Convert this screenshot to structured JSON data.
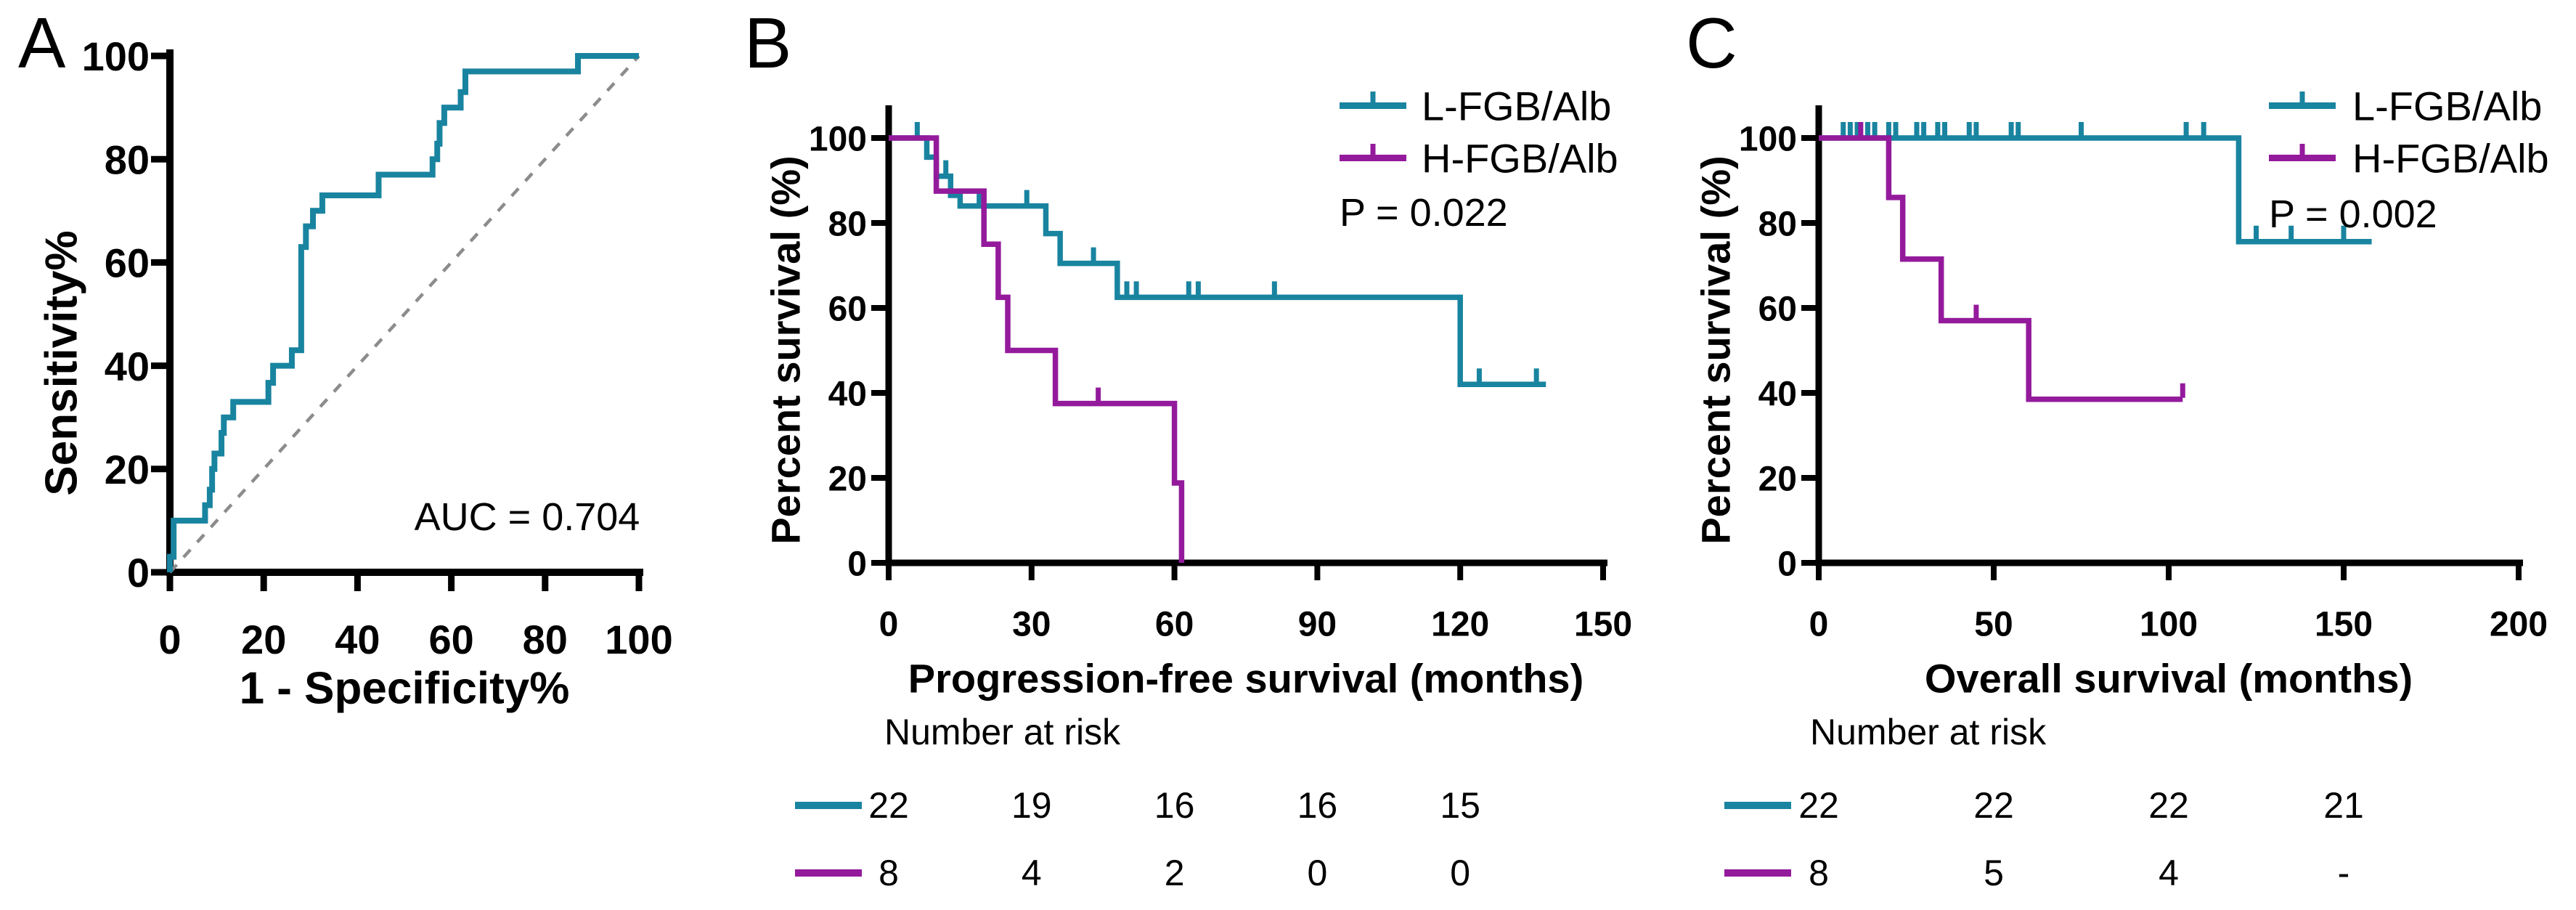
{
  "colors": {
    "teal": "#1984A0",
    "purple": "#941A9C",
    "diagonal": "#8C8C8C",
    "axis": "#000000",
    "background": "#FFFFFF"
  },
  "panels": {
    "a": {
      "letter": "A",
      "y_title": "Sensitivity%",
      "x_title": "1 - Specificity%",
      "annotation": "AUC = 0.704"
    },
    "b": {
      "letter": "B",
      "y_title": "Percent survival (%)",
      "x_title": "Progression-free survival (months)",
      "p_value": "P = 0.022",
      "number_at_risk_label": "Number at risk"
    },
    "c": {
      "letter": "C",
      "y_title": "Percent survival (%)",
      "x_title": "Overall survival (months)",
      "p_value": "P = 0.002",
      "number_at_risk_label": "Number at risk"
    }
  },
  "legend": {
    "series": [
      {
        "label": "L-FGB/Alb",
        "color_key": "teal"
      },
      {
        "label": "H-FGB/Alb",
        "color_key": "purple"
      }
    ]
  },
  "chart_data": [
    {
      "id": "roc",
      "type": "line",
      "title": "ROC curve",
      "xlabel": "1 - Specificity%",
      "ylabel": "Sensitivity%",
      "xlim": [
        0,
        100
      ],
      "ylim": [
        0,
        100
      ],
      "xticks": [
        0,
        20,
        40,
        60,
        80,
        100
      ],
      "yticks": [
        0,
        20,
        40,
        60,
        80,
        100
      ],
      "annotation": "AUC = 0.704",
      "auc": 0.704,
      "diagonal": true,
      "series": [
        {
          "name": "ROC",
          "color_key": "teal",
          "step": true,
          "points": [
            [
              0,
              0
            ],
            [
              0,
              3
            ],
            [
              0.8,
              10
            ],
            [
              7.5,
              13
            ],
            [
              8.5,
              16
            ],
            [
              9,
              20
            ],
            [
              9.5,
              23
            ],
            [
              11,
              27
            ],
            [
              11.5,
              30
            ],
            [
              13.5,
              33
            ],
            [
              21,
              36.7
            ],
            [
              22,
              40
            ],
            [
              26,
              43
            ],
            [
              28,
              63
            ],
            [
              29,
              67
            ],
            [
              30.5,
              70
            ],
            [
              32.5,
              73
            ],
            [
              44.5,
              77
            ],
            [
              56,
              80
            ],
            [
              57,
              83
            ],
            [
              57.5,
              87
            ],
            [
              58.5,
              90
            ],
            [
              62,
              93
            ],
            [
              63,
              97
            ],
            [
              87,
              100
            ],
            [
              100,
              100
            ]
          ],
          "censors": []
        }
      ]
    },
    {
      "id": "pfs",
      "type": "line",
      "title": "Kaplan-Meier progression-free survival",
      "xlabel": "Progression-free survival (months)",
      "ylabel": "Percent survival (%)",
      "xlim": [
        0,
        150
      ],
      "ylim": [
        0,
        100
      ],
      "xticks": [
        0,
        30,
        60,
        90,
        120,
        150
      ],
      "yticks": [
        0,
        20,
        40,
        60,
        80,
        100
      ],
      "p_value": "P = 0.022",
      "series": [
        {
          "name": "L-FGB/Alb",
          "color_key": "teal",
          "step": true,
          "points": [
            [
              0,
              100
            ],
            [
              8,
              95.5
            ],
            [
              10,
              91
            ],
            [
              13,
              86.5
            ],
            [
              15,
              84
            ],
            [
              33,
              77.5
            ],
            [
              36,
              70.5
            ],
            [
              48,
              62.5
            ],
            [
              120,
              42
            ],
            [
              138,
              42
            ]
          ],
          "censors": [
            [
              6,
              100
            ],
            [
              12,
              91
            ],
            [
              19,
              84
            ],
            [
              29,
              84
            ],
            [
              43,
              70.5
            ],
            [
              50,
              62.5
            ],
            [
              52,
              62.5
            ],
            [
              63,
              62.5
            ],
            [
              65,
              62.5
            ],
            [
              81,
              62.5
            ],
            [
              124,
              42
            ],
            [
              136,
              42
            ]
          ]
        },
        {
          "name": "H-FGB/Alb",
          "color_key": "purple",
          "step": true,
          "points": [
            [
              0,
              100
            ],
            [
              10,
              87.5
            ],
            [
              20,
              75
            ],
            [
              23,
              62.5
            ],
            [
              25,
              50
            ],
            [
              35,
              37.5
            ],
            [
              60,
              18.8
            ],
            [
              61.5,
              0
            ]
          ],
          "censors": [
            [
              44,
              37.5
            ]
          ]
        }
      ],
      "risk_table": {
        "label": "Number at risk",
        "times": [
          0,
          30,
          60,
          90,
          120
        ],
        "rows": [
          {
            "name": "L-FGB/Alb",
            "color_key": "teal",
            "counts": [
              "22",
              "19",
              "16",
              "16",
              "15"
            ]
          },
          {
            "name": "H-FGB/Alb",
            "color_key": "purple",
            "counts": [
              "8",
              "4",
              "2",
              "0",
              "0"
            ]
          }
        ]
      }
    },
    {
      "id": "os",
      "type": "line",
      "title": "Kaplan-Meier overall survival",
      "xlabel": "Overall survival (months)",
      "ylabel": "Percent survival (%)",
      "xlim": [
        0,
        200
      ],
      "ylim": [
        0,
        100
      ],
      "xticks": [
        0,
        50,
        100,
        150,
        200
      ],
      "yticks": [
        0,
        20,
        40,
        60,
        80,
        100
      ],
      "p_value": "P = 0.002",
      "series": [
        {
          "name": "L-FGB/Alb",
          "color_key": "teal",
          "step": true,
          "points": [
            [
              0,
              100
            ],
            [
              120,
              75.6
            ],
            [
              158,
              75.6
            ]
          ],
          "censors": [
            [
              7,
              100
            ],
            [
              9,
              100
            ],
            [
              11,
              100
            ],
            [
              14,
              100
            ],
            [
              16,
              100
            ],
            [
              20,
              100
            ],
            [
              22,
              100
            ],
            [
              28,
              100
            ],
            [
              30,
              100
            ],
            [
              34,
              100
            ],
            [
              36,
              100
            ],
            [
              43,
              100
            ],
            [
              45,
              100
            ],
            [
              55,
              100
            ],
            [
              57,
              100
            ],
            [
              75,
              100
            ],
            [
              105,
              100
            ],
            [
              110,
              100
            ],
            [
              125,
              75.6
            ],
            [
              135,
              75.6
            ],
            [
              150,
              75.6
            ]
          ]
        },
        {
          "name": "H-FGB/Alb",
          "color_key": "purple",
          "step": true,
          "points": [
            [
              0,
              100
            ],
            [
              20,
              86
            ],
            [
              24,
              71.5
            ],
            [
              35,
              57
            ],
            [
              60,
              38.5
            ],
            [
              104,
              38.5
            ]
          ],
          "censors": [
            [
              12,
              100
            ],
            [
              45,
              57
            ],
            [
              104,
              38.5
            ]
          ]
        }
      ],
      "risk_table": {
        "label": "Number at risk",
        "times": [
          0,
          50,
          100,
          150
        ],
        "rows": [
          {
            "name": "L-FGB/Alb",
            "color_key": "teal",
            "counts": [
              "22",
              "22",
              "22",
              "21"
            ]
          },
          {
            "name": "H-FGB/Alb",
            "color_key": "purple",
            "counts": [
              "8",
              "5",
              "4",
              "-"
            ]
          }
        ]
      }
    }
  ]
}
